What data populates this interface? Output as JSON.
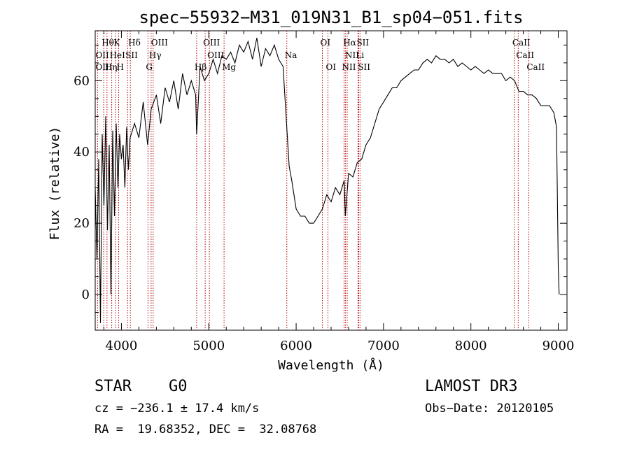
{
  "chart_data": {
    "type": "line",
    "title": "spec−55932−M31_019N31_B1_sp04−051.fits",
    "xlabel": "Wavelength (Å)",
    "ylabel": "Flux (relative)",
    "xlim": [
      3700,
      9100
    ],
    "ylim": [
      -10,
      74
    ],
    "x_ticks": [
      {
        "value": 4000,
        "label": "4000"
      },
      {
        "value": 5000,
        "label": "5000"
      },
      {
        "value": 6000,
        "label": "6000"
      },
      {
        "value": 7000,
        "label": "7000"
      },
      {
        "value": 8000,
        "label": "8000"
      },
      {
        "value": 9000,
        "label": "9000"
      }
    ],
    "y_ticks": [
      {
        "value": 0,
        "label": "0"
      },
      {
        "value": 20,
        "label": "20"
      },
      {
        "value": 40,
        "label": "40"
      },
      {
        "value": 60,
        "label": "60"
      }
    ],
    "series": [
      {
        "name": "spectrum",
        "color": "#000000",
        "x": [
          3700,
          3720,
          3740,
          3760,
          3780,
          3800,
          3820,
          3840,
          3860,
          3880,
          3900,
          3920,
          3940,
          3960,
          3980,
          4000,
          4020,
          4040,
          4060,
          4080,
          4100,
          4150,
          4200,
          4250,
          4300,
          4340,
          4400,
          4450,
          4500,
          4550,
          4600,
          4650,
          4700,
          4750,
          4800,
          4850,
          4861,
          4900,
          4950,
          5000,
          5050,
          5100,
          5150,
          5200,
          5250,
          5300,
          5350,
          5400,
          5450,
          5500,
          5550,
          5600,
          5650,
          5700,
          5750,
          5800,
          5850,
          5880,
          5900,
          5920,
          5950,
          6000,
          6050,
          6100,
          6150,
          6200,
          6250,
          6300,
          6350,
          6400,
          6450,
          6500,
          6550,
          6563,
          6600,
          6650,
          6700,
          6750,
          6800,
          6850,
          6900,
          6950,
          7000,
          7050,
          7100,
          7150,
          7200,
          7250,
          7300,
          7350,
          7400,
          7450,
          7500,
          7550,
          7600,
          7650,
          7700,
          7750,
          7800,
          7850,
          7900,
          7950,
          8000,
          8050,
          8100,
          8150,
          8200,
          8250,
          8300,
          8350,
          8400,
          8450,
          8500,
          8550,
          8600,
          8650,
          8700,
          8750,
          8800,
          8850,
          8900,
          8950,
          8980,
          9000,
          9005,
          9010
        ],
        "y": [
          30,
          10,
          38,
          -8,
          45,
          25,
          50,
          18,
          42,
          0,
          46,
          22,
          48,
          30,
          45,
          38,
          42,
          30,
          47,
          35,
          44,
          48,
          44,
          54,
          42,
          52,
          56,
          48,
          58,
          54,
          60,
          52,
          62,
          56,
          60,
          56,
          45,
          64,
          60,
          62,
          66,
          62,
          67,
          66,
          68,
          65,
          70,
          68,
          71,
          66,
          72,
          64,
          69,
          67,
          70,
          66,
          64,
          52,
          44,
          36,
          32,
          24,
          22,
          22,
          20,
          20,
          22,
          24,
          28,
          26,
          30,
          28,
          32,
          22,
          34,
          33,
          37,
          38,
          42,
          44,
          48,
          52,
          54,
          56,
          58,
          58,
          60,
          61,
          62,
          63,
          63,
          65,
          66,
          65,
          67,
          66,
          66,
          65,
          66,
          64,
          65,
          64,
          63,
          64,
          63,
          62,
          63,
          62,
          62,
          62,
          60,
          61,
          60,
          57,
          57,
          56,
          56,
          55,
          53,
          53,
          53,
          51,
          47,
          8,
          4,
          0
        ]
      }
    ],
    "line_markers": [
      {
        "label": "Hθ",
        "x": 3798,
        "row": 0
      },
      {
        "label": "K",
        "x": 3934,
        "row": 0
      },
      {
        "label": "Hδ",
        "x": 4102,
        "row": 0
      },
      {
        "label": "OIII",
        "x": 4363,
        "row": 0
      },
      {
        "label": "OIII",
        "x": 4959,
        "row": 0
      },
      {
        "label": "OI",
        "x": 6300,
        "row": 0
      },
      {
        "label": "Hα",
        "x": 6563,
        "row": 0
      },
      {
        "label": "SII",
        "x": 6716,
        "row": 0
      },
      {
        "label": "CaII",
        "x": 8498,
        "row": 0
      },
      {
        "label": "OII",
        "x": 3727,
        "row": 1
      },
      {
        "label": "HeI",
        "x": 3889,
        "row": 1
      },
      {
        "label": "SII",
        "x": 4070,
        "row": 1
      },
      {
        "label": "Hγ",
        "x": 4340,
        "row": 1
      },
      {
        "label": "OIII",
        "x": 5007,
        "row": 1
      },
      {
        "label": "NII",
        "x": 6584,
        "row": 1
      },
      {
        "label": "Li",
        "x": 6708,
        "row": 1
      },
      {
        "label": "CaII",
        "x": 8542,
        "row": 1
      },
      {
        "label": "OIII",
        "x": 3727,
        "row": 2
      },
      {
        "label": "Hη",
        "x": 3835,
        "row": 2
      },
      {
        "label": "H",
        "x": 3968,
        "row": 2
      },
      {
        "label": "G",
        "x": 4304,
        "row": 2
      },
      {
        "label": "Hβ",
        "x": 4861,
        "row": 2
      },
      {
        "label": "Mg",
        "x": 5175,
        "row": 2
      },
      {
        "label": "Na",
        "x": 5893,
        "row": 1
      },
      {
        "label": "OI",
        "x": 6364,
        "row": 2
      },
      {
        "label": "NII",
        "x": 6548,
        "row": 2
      },
      {
        "label": "SII",
        "x": 6731,
        "row": 2
      },
      {
        "label": "CaII",
        "x": 8662,
        "row": 2
      }
    ],
    "marker_color": "#b00000"
  },
  "info": {
    "class": "STAR",
    "subclass": "G0",
    "survey": "LAMOST DR3",
    "cz": "cz = −236.1 ± 17.4 km/s",
    "obs_date": "Obs−Date: 20120105",
    "coords": "RA =  19.68352, DEC =  32.08768"
  }
}
